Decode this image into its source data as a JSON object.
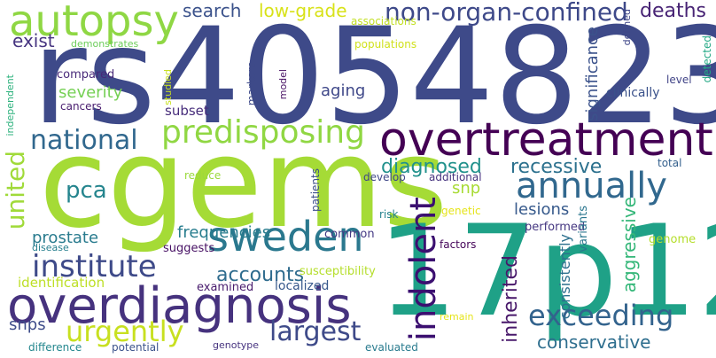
{
  "words": [
    {
      "text": "rs4054823",
      "color": "#3e4a89"
    },
    {
      "text": "cgems",
      "color": "#a5db36"
    },
    {
      "text": "17p12",
      "color": "#1fa187"
    },
    {
      "text": "overdiagnosis",
      "color": "#46327e"
    },
    {
      "text": "overtreatment",
      "color": "#440154"
    },
    {
      "text": "autopsy",
      "color": "#8fd744"
    },
    {
      "text": "indolent",
      "color": "#3b0f70"
    },
    {
      "text": "annually",
      "color": "#31688e"
    },
    {
      "text": "sweden",
      "color": "#2a788e"
    },
    {
      "text": "predisposing",
      "color": "#90d743"
    },
    {
      "text": "national",
      "color": "#31688e"
    },
    {
      "text": "non-organ-confined",
      "color": "#3e4989"
    },
    {
      "text": "exceeding",
      "color": "#33638d"
    },
    {
      "text": "institute",
      "color": "#3e4a89"
    },
    {
      "text": "united",
      "color": "#a0da39"
    },
    {
      "text": "largest",
      "color": "#3e4a89"
    },
    {
      "text": "urgently",
      "color": "#c8e020"
    },
    {
      "text": "recessive",
      "color": "#2c718e"
    },
    {
      "text": "diagnosed",
      "color": "#21918c"
    },
    {
      "text": "pca",
      "color": "#25858e"
    },
    {
      "text": "deaths",
      "color": "#482475"
    },
    {
      "text": "low-grade",
      "color": "#d8e219"
    },
    {
      "text": "search",
      "color": "#3b528b"
    },
    {
      "text": "exist",
      "color": "#463480"
    },
    {
      "text": "accounts",
      "color": "#2f6c8e"
    },
    {
      "text": "aggressive",
      "color": "#35b779"
    },
    {
      "text": "inherited",
      "color": "#48186a"
    },
    {
      "text": "conservative",
      "color": "#2e6e8e"
    },
    {
      "text": "frequencies",
      "color": "#287d8e"
    },
    {
      "text": "lesions",
      "color": "#375a8c"
    },
    {
      "text": "prostate",
      "color": "#297b8e"
    },
    {
      "text": "severity",
      "color": "#75d054"
    },
    {
      "text": "aging",
      "color": "#3f4889"
    },
    {
      "text": "snp",
      "color": "#a8db34"
    },
    {
      "text": "snps",
      "color": "#3e4c8a"
    },
    {
      "text": "significance",
      "color": "#3b528b"
    },
    {
      "text": "consistently",
      "color": "#2d708e"
    },
    {
      "text": "identification",
      "color": "#bddf26"
    },
    {
      "text": "subset",
      "color": "#472d7b"
    },
    {
      "text": "localized",
      "color": "#38598c"
    },
    {
      "text": "examined",
      "color": "#481b6d"
    },
    {
      "text": "clinically",
      "color": "#3b528b"
    },
    {
      "text": "susceptibility",
      "color": "#b5de2b"
    },
    {
      "text": "common",
      "color": "#443983"
    },
    {
      "text": "suggests",
      "color": "#471164"
    },
    {
      "text": "performed",
      "color": "#453781"
    },
    {
      "text": "genome",
      "color": "#b5de2b"
    },
    {
      "text": "variants",
      "color": "#2a768e"
    },
    {
      "text": "compared",
      "color": "#482979"
    },
    {
      "text": "cancers",
      "color": "#481c6e"
    },
    {
      "text": "demonstrates",
      "color": "#6ccd5a"
    },
    {
      "text": "populations",
      "color": "#d0e11c"
    },
    {
      "text": "associations",
      "color": "#c2df23"
    },
    {
      "text": "develop",
      "color": "#3f4788"
    },
    {
      "text": "additional",
      "color": "#46327e"
    },
    {
      "text": "patients",
      "color": "#3c4f8a"
    },
    {
      "text": "reduce",
      "color": "#9bd93c"
    },
    {
      "text": "genetic",
      "color": "#e5e419"
    },
    {
      "text": "factors",
      "color": "#450559"
    },
    {
      "text": "risk",
      "color": "#26828e"
    },
    {
      "text": "total",
      "color": "#34608d"
    },
    {
      "text": "level",
      "color": "#414487"
    },
    {
      "text": "defined",
      "color": "#3f4788"
    },
    {
      "text": "detected",
      "color": "#22a884"
    },
    {
      "text": "markers",
      "color": "#3e4a89"
    },
    {
      "text": "model",
      "color": "#471063"
    },
    {
      "text": "studied",
      "color": "#c8e020"
    },
    {
      "text": "independent",
      "color": "#2db27d"
    },
    {
      "text": "disease",
      "color": "#277f8e"
    },
    {
      "text": "difference",
      "color": "#24878e"
    },
    {
      "text": "potential",
      "color": "#3b528b"
    },
    {
      "text": "genotype",
      "color": "#46337f"
    },
    {
      "text": "evaluated",
      "color": "#297b8e"
    },
    {
      "text": "remain",
      "color": "#e5e419"
    }
  ]
}
